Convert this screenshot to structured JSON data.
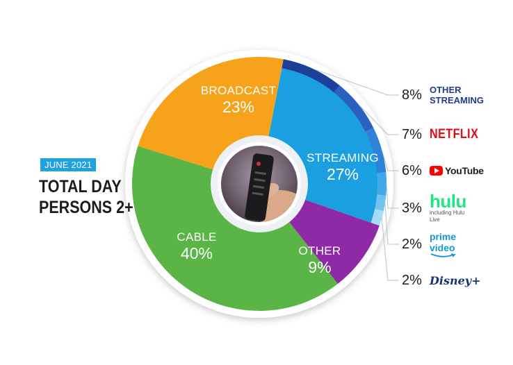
{
  "header": {
    "date_badge": "JUNE 2021",
    "title_line1": "TOTAL DAY",
    "title_line2": "PERSONS 2+"
  },
  "center_icon": "tv-remote-photo",
  "chart_data": {
    "type": "pie",
    "style": "donut",
    "slices": [
      {
        "label": "STREAMING",
        "value": 27,
        "display": "27%",
        "color": "#1a9fe0"
      },
      {
        "label": "OTHER",
        "value": 9,
        "display": "9%",
        "color": "#8e2aa6"
      },
      {
        "label": "CABLE",
        "value": 40,
        "display": "40%",
        "color": "#5ab546"
      },
      {
        "label": "BROADCAST",
        "value": 23,
        "display": "23%",
        "color": "#f7a21b"
      }
    ],
    "streaming_breakdown": [
      {
        "label": "OTHER STREAMING",
        "value": 8,
        "display": "8%",
        "color": "#1e3f99",
        "logo": "other-streaming-text"
      },
      {
        "label": "NETFLIX",
        "value": 7,
        "display": "7%",
        "color": "#2b5fc0",
        "logo": "netflix-logo"
      },
      {
        "label": "YouTube",
        "value": 6,
        "display": "6%",
        "color": "#2f82da",
        "logo": "youtube-logo"
      },
      {
        "label": "hulu",
        "sublabel": "including Hulu Live",
        "value": 3,
        "display": "3%",
        "color": "#3fa9ea",
        "logo": "hulu-logo"
      },
      {
        "label": "prime video",
        "value": 2,
        "display": "2%",
        "color": "#72c2f0",
        "logo": "prime-video-logo"
      },
      {
        "label": "Disney+",
        "value": 2,
        "display": "2%",
        "color": "#a6dcf7",
        "logo": "disney-plus-logo"
      }
    ]
  }
}
